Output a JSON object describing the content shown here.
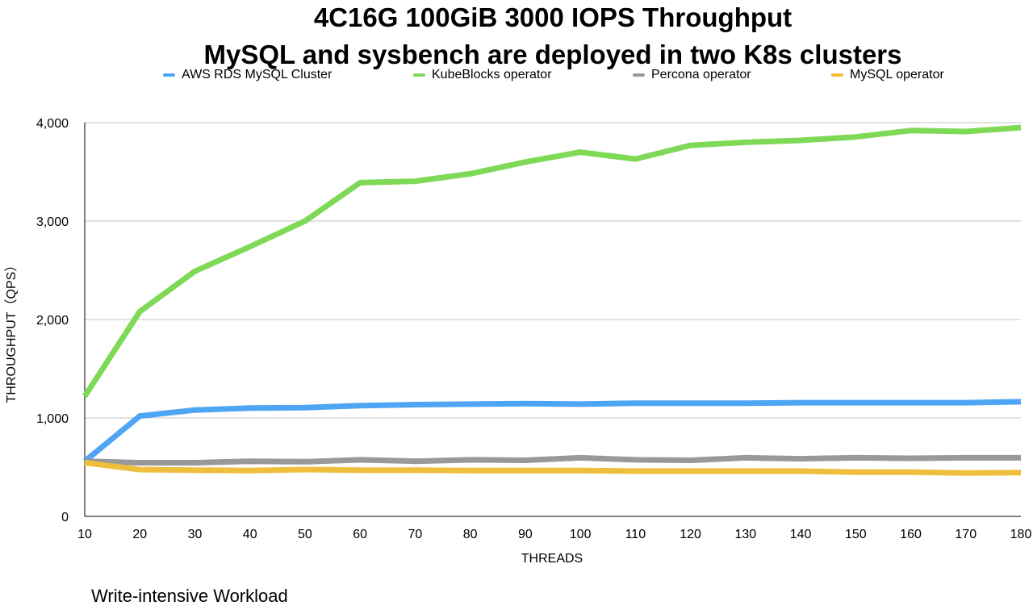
{
  "chart_data": {
    "type": "line",
    "title": "4C16G 100GiB 3000 IOPS Throughput",
    "subtitle": "MySQL and sysbench are deployed in two K8s clusters",
    "xlabel": "THREADS",
    "ylabel": "THROUGHPUT（QPS）",
    "x": [
      10,
      20,
      30,
      40,
      50,
      60,
      70,
      80,
      90,
      100,
      110,
      120,
      130,
      140,
      150,
      160,
      170,
      180
    ],
    "xlim": [
      10,
      180
    ],
    "ylim": [
      0,
      4000
    ],
    "yticks": [
      0,
      1000,
      2000,
      3000,
      4000
    ],
    "ytick_labels": [
      "0",
      "1,000",
      "2,000",
      "3,000",
      "4,000"
    ],
    "grid": true,
    "legend_position": "top",
    "series": [
      {
        "name": "AWS RDS MySQL Cluster",
        "color": "#4ea5f4",
        "values": [
          560,
          1020,
          1080,
          1100,
          1105,
          1125,
          1135,
          1140,
          1145,
          1140,
          1150,
          1150,
          1150,
          1155,
          1155,
          1155,
          1155,
          1165
        ]
      },
      {
        "name": "KubeBlocks operator",
        "color": "#7ed957",
        "values": [
          1220,
          2080,
          2490,
          2740,
          3000,
          3390,
          3405,
          3480,
          3600,
          3700,
          3630,
          3770,
          3800,
          3820,
          3855,
          3920,
          3910,
          3950
        ]
      },
      {
        "name": "Percona operator",
        "color": "#999999",
        "values": [
          560,
          545,
          545,
          560,
          555,
          575,
          560,
          575,
          570,
          595,
          575,
          570,
          595,
          585,
          595,
          590,
          595,
          595
        ]
      },
      {
        "name": "MySQL operator",
        "color": "#efbe3c",
        "values": [
          545,
          475,
          470,
          465,
          475,
          470,
          470,
          465,
          465,
          465,
          460,
          460,
          460,
          460,
          450,
          450,
          440,
          445
        ]
      }
    ]
  },
  "footnote": "Write-intensive Workload"
}
